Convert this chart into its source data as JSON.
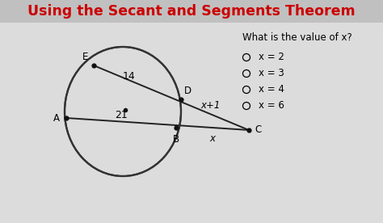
{
  "title": "Using the Secant and Segments Theorem",
  "title_color": "#cc0000",
  "title_fontsize": 12.5,
  "bg_color": "#dcdcdc",
  "header_bg": "#c8c8c8",
  "question_text": "What is the value of x?",
  "options": [
    "x = 2",
    "x = 3",
    "x = 4",
    "x = 6"
  ],
  "line_color": "#222222",
  "dot_color": "#111111",
  "circle_color": "#333333",
  "circle_color2": "#555555"
}
